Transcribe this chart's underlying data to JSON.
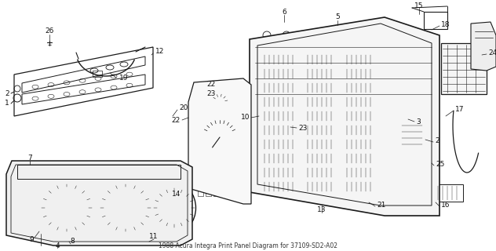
{
  "title": "1988 Acura Integra Print Panel Diagram for 37109-SD2-A02",
  "bg": "#ffffff",
  "lc": "#1a1a1a",
  "tc": "#111111",
  "figsize": [
    6.32,
    3.2
  ],
  "dpi": 100
}
